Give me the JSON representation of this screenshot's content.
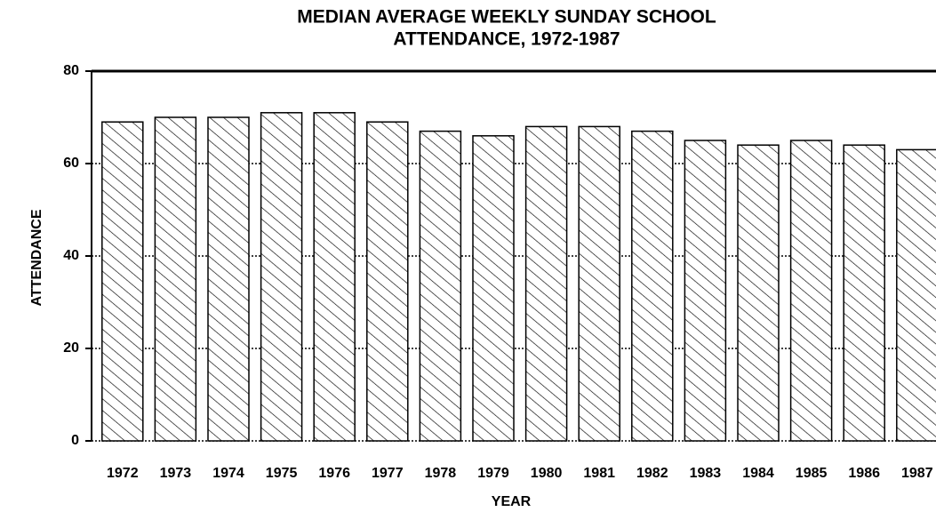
{
  "chart_data": {
    "type": "bar",
    "title": [
      "MEDIAN AVERAGE WEEKLY SUNDAY SCHOOL",
      "ATTENDANCE, 1972-1987"
    ],
    "x_label": "YEAR",
    "y_label": "ATTENDANCE",
    "categories": [
      "1972",
      "1973",
      "1974",
      "1975",
      "1976",
      "1977",
      "1978",
      "1979",
      "1980",
      "1981",
      "1982",
      "1983",
      "1984",
      "1985",
      "1986",
      "1987"
    ],
    "values": [
      69,
      70,
      70,
      71,
      71,
      69,
      67,
      66,
      68,
      68,
      67,
      65,
      64,
      65,
      64,
      63
    ],
    "color": "#000000",
    "ylim": [
      0,
      80
    ],
    "yticks": [
      0,
      20,
      40,
      60,
      80
    ],
    "grid": true
  }
}
